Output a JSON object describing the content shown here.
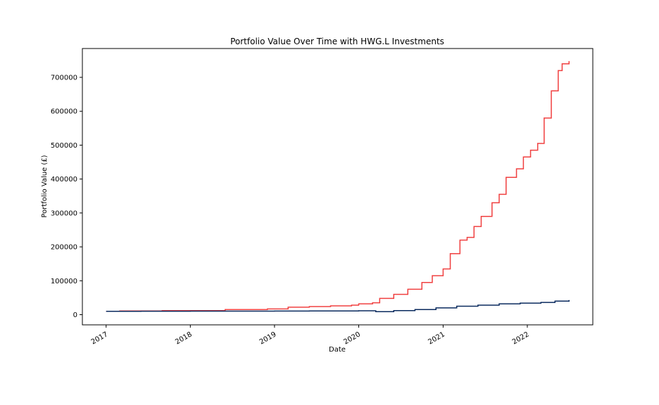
{
  "chart_data": {
    "type": "line",
    "title": "Portfolio Value Over Time with HWG.L Investments",
    "xlabel": "Date",
    "ylabel": "Portfolio Value (£)",
    "xlim": [
      "2016-09-20",
      "2022-10-12"
    ],
    "ylim": [
      -30000,
      785000
    ],
    "x_ticks": [
      "2017",
      "2018",
      "2019",
      "2020",
      "2021",
      "2022"
    ],
    "x_tick_dates": [
      "2017-01-01",
      "2018-01-01",
      "2019-01-01",
      "2020-01-01",
      "2021-01-01",
      "2022-01-01"
    ],
    "y_ticks": [
      0,
      100000,
      200000,
      300000,
      400000,
      500000,
      600000,
      700000
    ],
    "grid": false,
    "series": [
      {
        "color": "#f04040",
        "points": [
          [
            "2017-01-01",
            10000
          ],
          [
            "2017-03-01",
            11000
          ],
          [
            "2017-09-01",
            12000
          ],
          [
            "2018-06-01",
            15000
          ],
          [
            "2018-12-01",
            17000
          ],
          [
            "2019-03-01",
            22000
          ],
          [
            "2019-06-01",
            24000
          ],
          [
            "2019-09-01",
            26000
          ],
          [
            "2019-12-01",
            28000
          ],
          [
            "2020-01-01",
            32000
          ],
          [
            "2020-03-01",
            35000
          ],
          [
            "2020-04-01",
            48000
          ],
          [
            "2020-06-01",
            60000
          ],
          [
            "2020-08-01",
            75000
          ],
          [
            "2020-10-01",
            95000
          ],
          [
            "2020-11-15",
            115000
          ],
          [
            "2021-01-01",
            135000
          ],
          [
            "2021-02-01",
            180000
          ],
          [
            "2021-03-15",
            220000
          ],
          [
            "2021-04-15",
            228000
          ],
          [
            "2021-05-15",
            260000
          ],
          [
            "2021-06-15",
            290000
          ],
          [
            "2021-08-01",
            330000
          ],
          [
            "2021-09-01",
            355000
          ],
          [
            "2021-10-01",
            405000
          ],
          [
            "2021-11-15",
            430000
          ],
          [
            "2021-12-15",
            465000
          ],
          [
            "2022-01-15",
            485000
          ],
          [
            "2022-02-15",
            505000
          ],
          [
            "2022-03-15",
            580000
          ],
          [
            "2022-04-15",
            660000
          ],
          [
            "2022-05-15",
            720000
          ],
          [
            "2022-06-01",
            740000
          ],
          [
            "2022-07-01",
            748000
          ]
        ]
      },
      {
        "color": "#0a2a5e",
        "points": [
          [
            "2017-01-01",
            10000
          ],
          [
            "2017-06-01",
            10200
          ],
          [
            "2018-01-01",
            10400
          ],
          [
            "2018-06-01",
            10500
          ],
          [
            "2019-01-01",
            10800
          ],
          [
            "2019-06-01",
            11000
          ],
          [
            "2020-01-01",
            11500
          ],
          [
            "2020-03-15",
            9000
          ],
          [
            "2020-06-01",
            12000
          ],
          [
            "2020-09-01",
            15000
          ],
          [
            "2020-12-01",
            20000
          ],
          [
            "2021-03-01",
            25000
          ],
          [
            "2021-06-01",
            28000
          ],
          [
            "2021-09-01",
            32000
          ],
          [
            "2021-12-01",
            34000
          ],
          [
            "2022-03-01",
            36000
          ],
          [
            "2022-05-01",
            40000
          ],
          [
            "2022-07-01",
            43000
          ]
        ]
      }
    ]
  }
}
